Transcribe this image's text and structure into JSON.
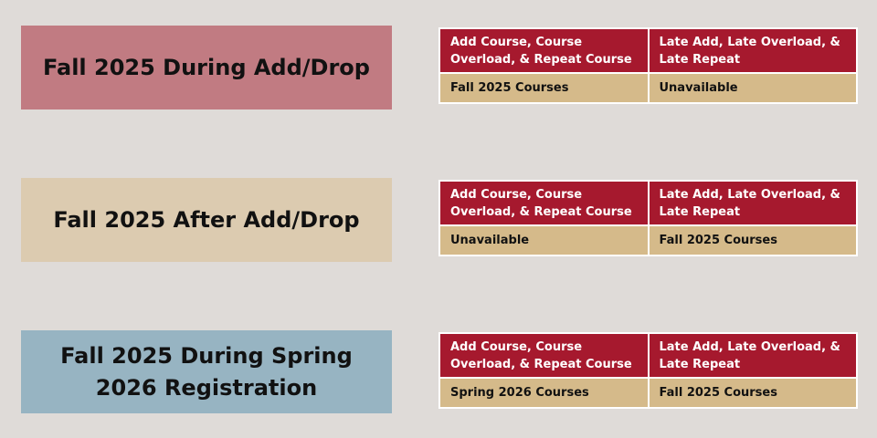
{
  "colors": {
    "background": "#dfdbd8",
    "header_red": "#a6192e",
    "cell_tan": "#d5ba8a",
    "box1": "#c17b82",
    "box2": "#dccbb0",
    "box3": "#97b4c2"
  },
  "sections": [
    {
      "title": "Fall 2025 During Add/Drop",
      "headers": [
        "Add Course, Course Overload,  & Repeat Course",
        "Late Add, Late Overload, & Late Repeat"
      ],
      "values": [
        "Fall 2025 Courses",
        "Unavailable"
      ]
    },
    {
      "title": "Fall 2025 After Add/Drop",
      "headers": [
        "Add Course, Course Overload,  & Repeat Course",
        "Late Add, Late Overload, & Late Repeat"
      ],
      "values": [
        "Unavailable",
        "Fall 2025 Courses"
      ]
    },
    {
      "title": "Fall 2025 During Spring 2026 Registration",
      "headers": [
        "Add Course, Course Overload,  & Repeat Course",
        "Late Add, Late Overload, & Late Repeat"
      ],
      "values": [
        "Spring 2026 Courses",
        "Fall 2025 Courses"
      ]
    }
  ]
}
